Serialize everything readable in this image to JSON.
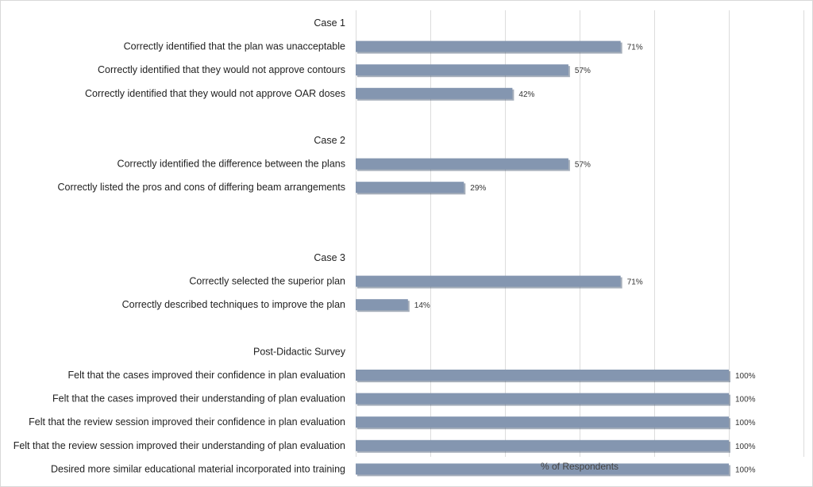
{
  "chart_data": {
    "type": "bar",
    "orientation": "horizontal",
    "xlabel": "% of Respondents",
    "xlim": [
      0,
      120
    ],
    "grid": true,
    "bar_color": "#8496b0",
    "bar_shadow_color": "#5b6b82",
    "categories": [
      "Case 1",
      "Correctly identified that the plan was unacceptable",
      "Correctly identified that they would not approve contours",
      "Correctly identified that they would not approve OAR doses",
      "",
      "Case 2",
      "Correctly identified the difference between the plans",
      "Correctly listed the pros and cons of differing beam arrangements",
      "",
      "",
      "Case 3",
      "Correctly selected the superior plan",
      "Correctly described techniques to improve the plan",
      "",
      "Post-Didactic Survey",
      "Felt that the cases improved their confidence in plan evaluation",
      "Felt that the cases improved their understanding of plan evaluation",
      "Felt that the review session improved their confidence in plan evaluation",
      "Felt that the review session improved their understanding of plan evaluation",
      "Desired more similar educational material incorporated into training"
    ],
    "values": [
      null,
      71,
      57,
      42,
      null,
      null,
      57,
      29,
      null,
      null,
      null,
      71,
      14,
      null,
      null,
      100,
      100,
      100,
      100,
      100
    ],
    "data_labels": [
      "",
      "71%",
      "57%",
      "42%",
      "",
      "",
      "57%",
      "29%",
      "",
      "",
      "",
      "71%",
      "14%",
      "",
      "",
      "100%",
      "100%",
      "100%",
      "100%",
      "100%"
    ]
  }
}
